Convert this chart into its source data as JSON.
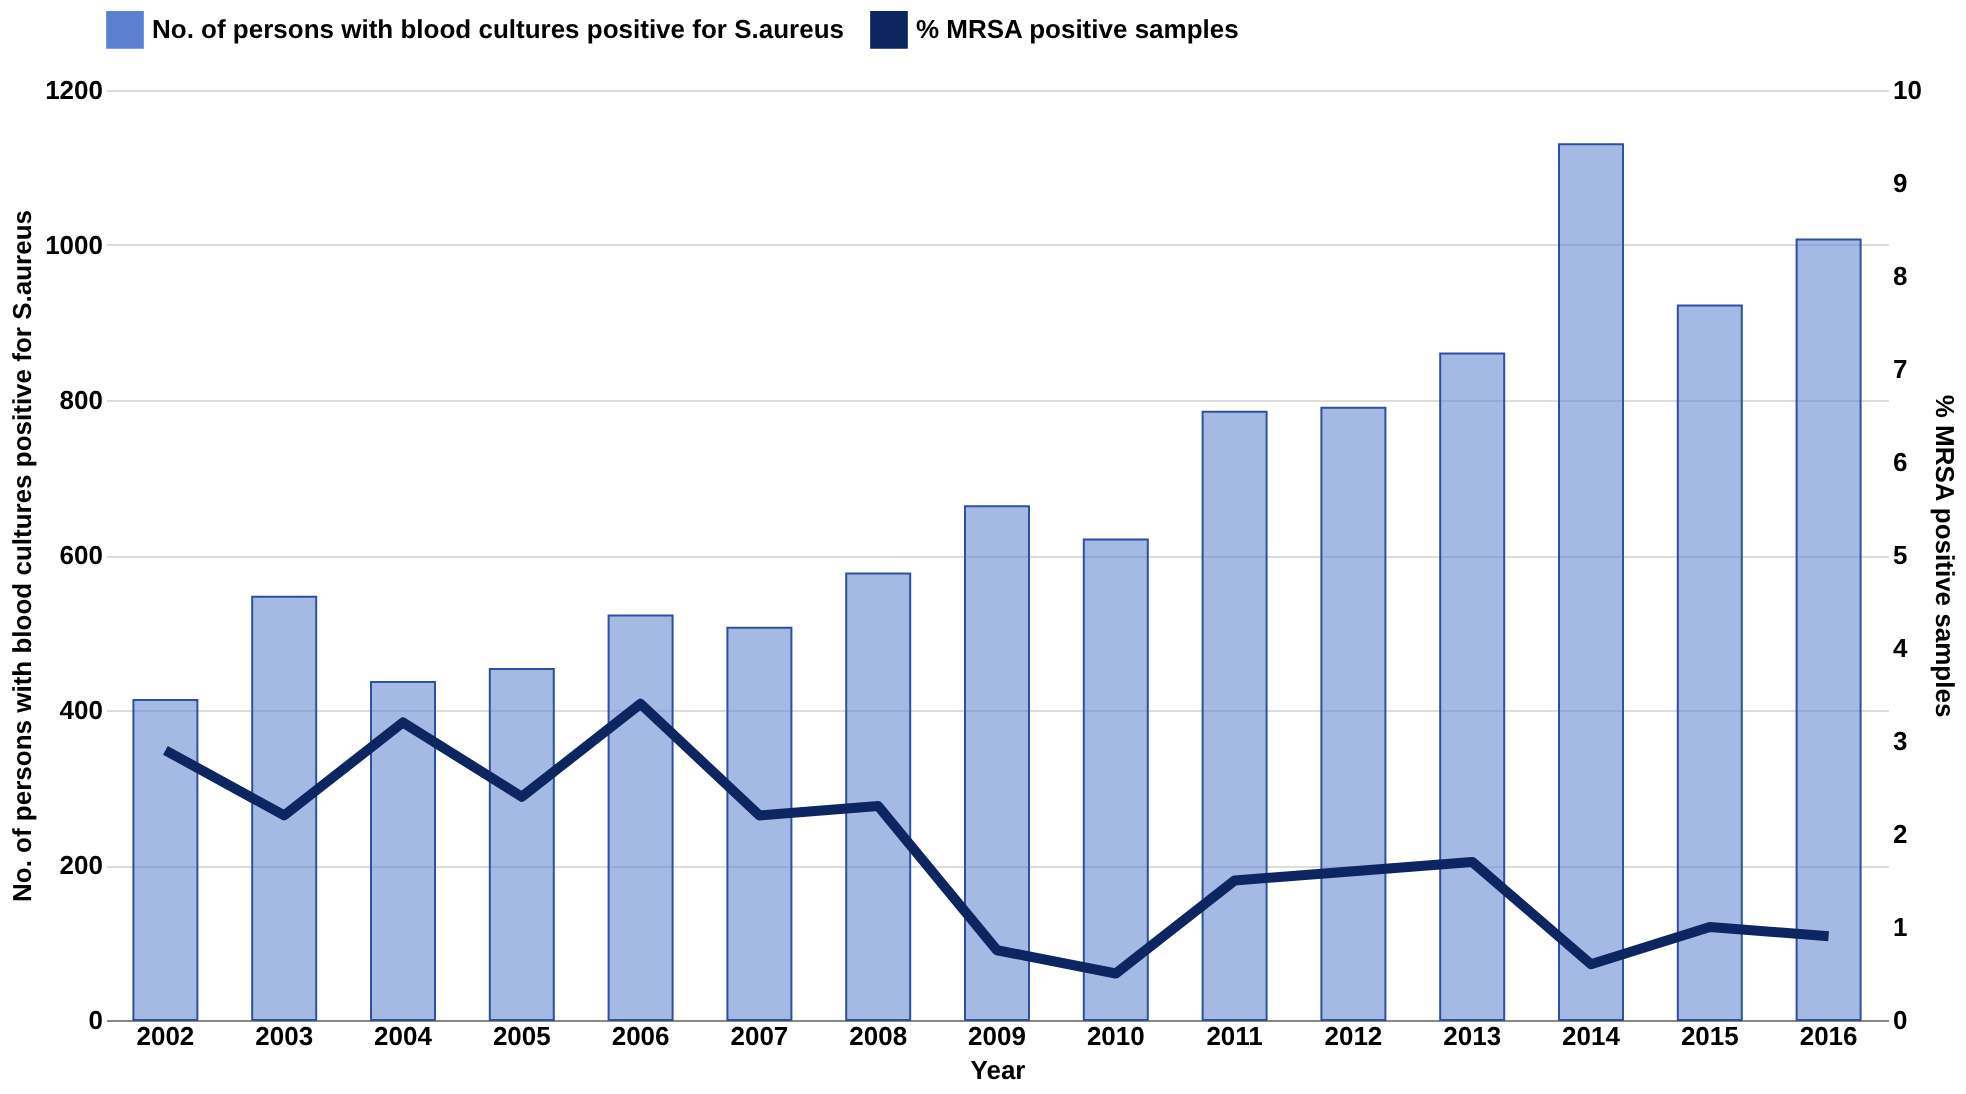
{
  "chart_data": {
    "type": "bar",
    "xlabel": "Year",
    "ylabel": "No. of persons with blood cultures positive for S.aureus",
    "y2label": "% MRSA positive samples",
    "categories": [
      "2002",
      "2003",
      "2004",
      "2005",
      "2006",
      "2007",
      "2008",
      "2009",
      "2010",
      "2011",
      "2012",
      "2013",
      "2014",
      "2015",
      "2016"
    ],
    "series": [
      {
        "name": "No. of persons with blood cultures positive for S.aureus",
        "color": "#5b80cf",
        "values": [
          413,
          546,
          436,
          453,
          522,
          506,
          576,
          663,
          620,
          785,
          790,
          860,
          1130,
          922,
          1007
        ]
      },
      {
        "name": "% MRSA positive samples",
        "color": "#0d2560",
        "type": "line",
        "axis": "y2",
        "values": [
          2.9,
          2.2,
          3.2,
          2.4,
          3.4,
          2.2,
          2.3,
          0.75,
          0.5,
          1.5,
          1.6,
          1.7,
          0.6,
          1.0,
          0.9
        ]
      }
    ],
    "ylim": [
      0,
      1200
    ],
    "yticks": [
      0,
      200,
      400,
      600,
      800,
      1000,
      1200
    ],
    "y2lim": [
      0,
      10
    ],
    "y2ticks": [
      0,
      1,
      2,
      3,
      4,
      5,
      6,
      7,
      8,
      9,
      10
    ],
    "grid": "y",
    "legend": "top",
    "marker": "none",
    "line_style": "solid"
  }
}
